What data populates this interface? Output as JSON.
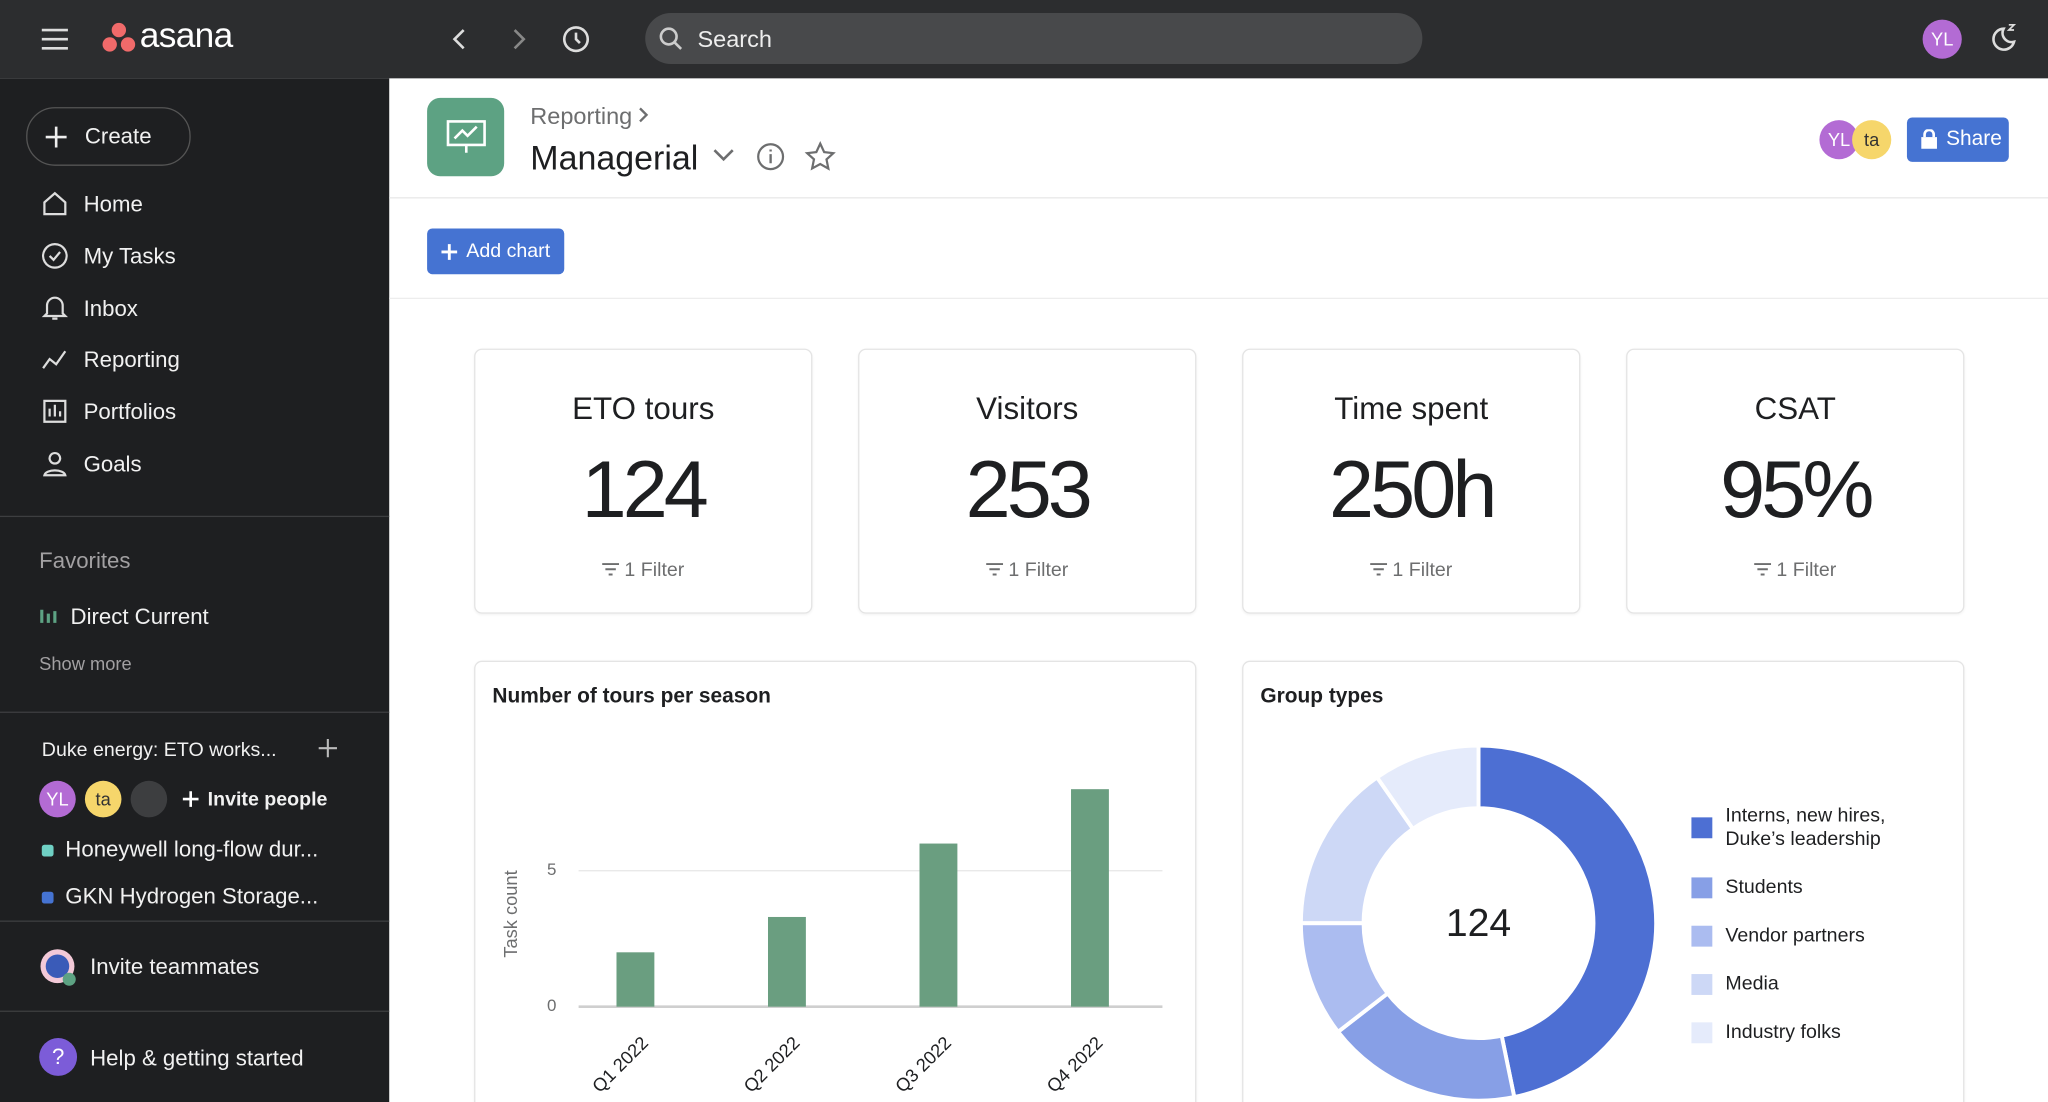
{
  "topbar": {
    "logo": "asana",
    "search_placeholder": "Search",
    "avatar": "YL"
  },
  "sidebar": {
    "create": "Create",
    "nav": [
      "Home",
      "My Tasks",
      "Inbox",
      "Reporting",
      "Portfolios",
      "Goals"
    ],
    "favorites_heading": "Favorites",
    "favorites": [
      "Direct Current"
    ],
    "show_more": "Show more",
    "team": "Duke energy: ETO works...",
    "team_avatars": [
      "YL",
      "ta"
    ],
    "invite_people": "Invite people",
    "projects": [
      "Honeywell long-flow dur...",
      "GKN Hydrogen Storage..."
    ],
    "invite_teammates": "Invite teammates",
    "help": "Help & getting started"
  },
  "header": {
    "breadcrumb": "Reporting",
    "title": "Managerial",
    "avatars": [
      "YL",
      "ta"
    ],
    "share": "Share",
    "add_chart": "Add chart"
  },
  "metrics": [
    {
      "label": "ETO tours",
      "value": "124",
      "filter": "1 Filter"
    },
    {
      "label": "Visitors",
      "value": "253",
      "filter": "1 Filter"
    },
    {
      "label": "Time spent",
      "value": "250h",
      "filter": "1 Filter"
    },
    {
      "label": "CSAT",
      "value": "95%",
      "filter": "1 Filter"
    }
  ],
  "chart_data": [
    {
      "type": "bar",
      "title": "Number of tours per season",
      "y_label": "Task count",
      "categories": [
        "Q1 2022",
        "Q2 2022",
        "Q3 2022",
        "Q4 2022"
      ],
      "values": [
        2,
        3.3,
        6,
        8
      ],
      "color": "#6a9e80",
      "ylim": [
        0,
        8.5
      ],
      "yticks": [
        0,
        5
      ],
      "grid": true
    },
    {
      "type": "donut",
      "title": "Group types",
      "center_label": 124,
      "categories": [
        "Interns, new hires, Duke’s leadership",
        "Students",
        "Vendor partners",
        "Media",
        "Industry folks"
      ],
      "values": [
        58,
        22,
        13,
        19,
        12
      ],
      "colors": [
        "#4d6fd3",
        "#879fe6",
        "#abbcf0",
        "#cdd8f6",
        "#e5ebfb"
      ]
    }
  ]
}
